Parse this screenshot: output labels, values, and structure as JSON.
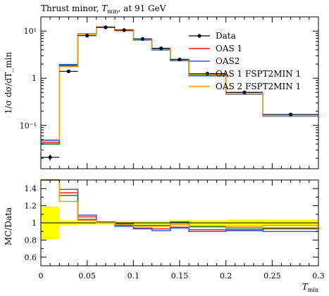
{
  "chart_data": {
    "type": "line",
    "title": "Thrust minor, T_min, at 91 GeV",
    "title_main": "Thrust minor, ",
    "title_var": "T",
    "title_sub": "min",
    "title_tail": ", at 91 GeV",
    "xlabel": "T_min",
    "xlabel_var": "T",
    "xlabel_sub": "min",
    "ylabel_main": "1/σ dσ/dT_min",
    "ylabel_ratio": "MC/Data",
    "x_range": [
      0,
      0.3
    ],
    "y_main_range": [
      0.012,
      20
    ],
    "y_main_scale": "log",
    "y_ratio_range": [
      0.5,
      1.5
    ],
    "legend_position": "top-right",
    "x_ticks": [
      {
        "value": 0,
        "label": "0"
      },
      {
        "value": 0.05,
        "label": "0.05"
      },
      {
        "value": 0.1,
        "label": "0.1"
      },
      {
        "value": 0.15,
        "label": "0.15"
      },
      {
        "value": 0.2,
        "label": "0.2"
      },
      {
        "value": 0.25,
        "label": "0.25"
      },
      {
        "value": 0.3,
        "label": "0.3"
      }
    ],
    "y_main_ticks": [
      {
        "value": 0.1,
        "label": "10⁻¹"
      },
      {
        "value": 1,
        "label": "1"
      },
      {
        "value": 10,
        "label": "10¹"
      }
    ],
    "y_ratio_ticks": [
      {
        "value": 0.6,
        "label": "0.6"
      },
      {
        "value": 0.8,
        "label": "0.8"
      },
      {
        "value": 1.0,
        "label": "1"
      },
      {
        "value": 1.2,
        "label": "1.2"
      },
      {
        "value": 1.4,
        "label": "1.4"
      }
    ],
    "bin_edges": [
      0,
      0.02,
      0.04,
      0.06,
      0.08,
      0.1,
      0.12,
      0.14,
      0.16,
      0.2,
      0.24,
      0.3
    ],
    "data": {
      "name": "Data",
      "color": "#000000",
      "values": [
        0.021,
        1.4,
        8.0,
        12.0,
        10.5,
        6.8,
        4.3,
        2.5,
        1.25,
        0.5,
        0.17
      ],
      "errors": [
        0.003,
        0.05,
        0.2,
        0.25,
        0.2,
        0.15,
        0.1,
        0.06,
        0.03,
        0.012,
        0.005
      ]
    },
    "data_band": [
      {
        "lo": 0.81,
        "hi": 1.19
      },
      {
        "lo": 0.97,
        "hi": 1.03
      },
      {
        "lo": 0.98,
        "hi": 1.02
      },
      {
        "lo": 0.98,
        "hi": 1.02
      },
      {
        "lo": 0.98,
        "hi": 1.02
      },
      {
        "lo": 0.98,
        "hi": 1.02
      },
      {
        "lo": 0.98,
        "hi": 1.02
      },
      {
        "lo": 0.97,
        "hi": 1.03
      },
      {
        "lo": 0.97,
        "hi": 1.03
      },
      {
        "lo": 0.96,
        "hi": 1.04
      },
      {
        "lo": 0.96,
        "hi": 1.04
      }
    ],
    "series": [
      {
        "name": "OAS 1",
        "color": "#e8191c",
        "values": [
          0.043,
          1.9,
          8.7,
          12.1,
          10.3,
          6.5,
          4.0,
          2.4,
          1.15,
          0.46,
          0.158
        ]
      },
      {
        "name": "OAS2",
        "color": "#2b5fe8",
        "values": [
          0.047,
          1.95,
          8.75,
          12.15,
          10.2,
          6.4,
          3.95,
          2.35,
          1.12,
          0.455,
          0.156
        ]
      },
      {
        "name": "OAS 1 FSPT2MIN 1",
        "color": "#128012",
        "values": [
          0.04,
          1.85,
          8.6,
          12.1,
          10.4,
          6.6,
          4.1,
          2.5,
          1.2,
          0.47,
          0.16
        ]
      },
      {
        "name": "OAS 2 FSPT2MIN 1",
        "color": "#f39c12",
        "values": [
          0.05,
          1.75,
          8.5,
          12.0,
          10.3,
          6.55,
          4.05,
          2.45,
          1.18,
          0.465,
          0.159
        ]
      }
    ],
    "ratio_series": [
      {
        "name": "OAS 1",
        "color": "#e8191c",
        "values": [
          1.95,
          1.35,
          1.07,
          1.01,
          0.97,
          0.94,
          0.93,
          0.95,
          0.92,
          0.92,
          0.93
        ]
      },
      {
        "name": "OAS2",
        "color": "#2b5fe8",
        "values": [
          1.95,
          1.39,
          1.09,
          1.01,
          0.96,
          0.93,
          0.91,
          0.94,
          0.9,
          0.91,
          0.9
        ]
      },
      {
        "name": "OAS 1 FSPT2MIN 1",
        "color": "#128012",
        "values": [
          1.88,
          1.32,
          1.04,
          1.01,
          0.99,
          0.97,
          0.97,
          1.01,
          0.96,
          0.94,
          0.94
        ]
      },
      {
        "name": "OAS 2 FSPT2MIN 1",
        "color": "#f39c12",
        "values": [
          1.95,
          1.25,
          1.03,
          1.0,
          0.98,
          0.96,
          0.96,
          0.98,
          0.95,
          0.96,
          0.97
        ]
      }
    ]
  }
}
